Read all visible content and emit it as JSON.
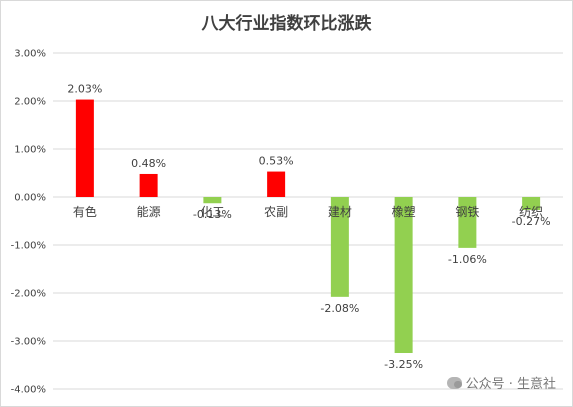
{
  "chart_data": {
    "type": "bar",
    "title": "八大行业指数环比涨跌",
    "categories": [
      "有色",
      "能源",
      "化工",
      "农副",
      "建材",
      "橡塑",
      "钢铁",
      "纺织"
    ],
    "values": [
      2.03,
      0.48,
      -0.13,
      0.53,
      -2.08,
      -3.25,
      -1.06,
      -0.27
    ],
    "data_labels": [
      "2.03%",
      "0.48%",
      "-0.13%",
      "0.53%",
      "-2.08%",
      "-3.25%",
      "-1.06%",
      "-0.27%"
    ],
    "ylim": [
      -4.0,
      3.0
    ],
    "y_ticks": [
      3.0,
      2.0,
      1.0,
      0.0,
      -1.0,
      -2.0,
      -3.0,
      -4.0
    ],
    "y_tick_labels": [
      "3.00%",
      "2.00%",
      "1.00%",
      "0.00%",
      "-1.00%",
      "-2.00%",
      "-3.00%",
      "-4.00%"
    ],
    "grid": true,
    "legend": "none",
    "colors": {
      "positive": "#ff0000",
      "negative": "#92d050",
      "grid": "#d9d9d9",
      "text": "#404040"
    }
  },
  "watermark": {
    "text": "公众号 · 生意社",
    "icon": "wechat-icon"
  }
}
